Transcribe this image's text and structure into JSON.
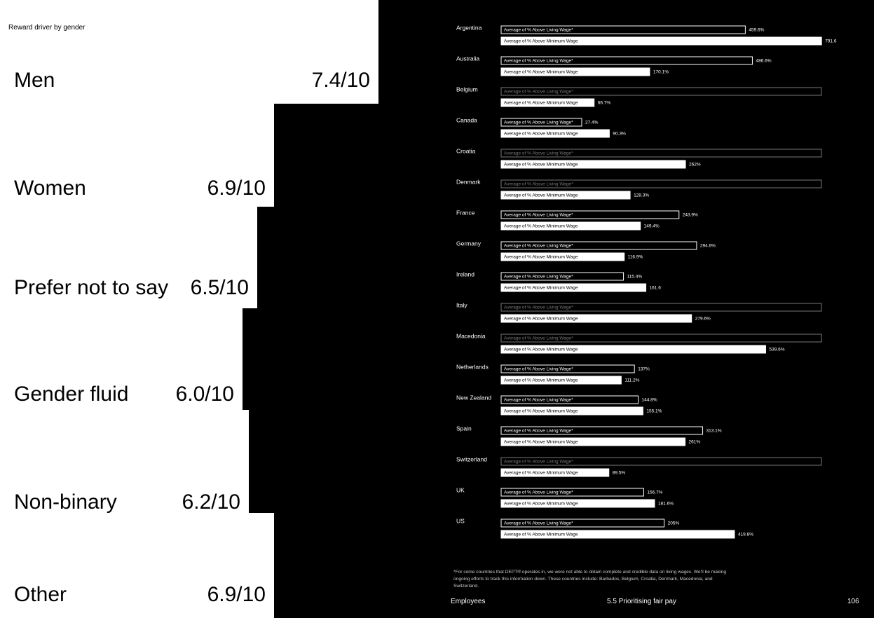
{
  "title": "Reward driver by gender",
  "gender_scores": [
    {
      "label": "Men",
      "score": "7.4/10"
    },
    {
      "label": "Women",
      "score": "6.9/10"
    },
    {
      "label": "Prefer not to say",
      "score": "6.5/10"
    },
    {
      "label": "Gender fluid",
      "score": "6.0/10"
    },
    {
      "label": "Non-binary",
      "score": "6.2/10"
    },
    {
      "label": "Other",
      "score": "6.9/10"
    }
  ],
  "chart_data": {
    "type": "bar",
    "orientation": "horizontal",
    "x_scale": "sqrt",
    "categories": [
      "Argentina",
      "Australia",
      "Belgium",
      "Canada",
      "Croatia",
      "Denmark",
      "France",
      "Germany",
      "Ireland",
      "Italy",
      "Macedonia",
      "Netherlands",
      "New Zealand",
      "Spain",
      "Switzerland",
      "UK",
      "US"
    ],
    "series": [
      {
        "name": "Average of % Above Living Wage*",
        "color": "#000000",
        "values": [
          459.6,
          486.6,
          null,
          27.4,
          null,
          null,
          243.9,
          294.6,
          115.4,
          null,
          null,
          137,
          144.8,
          313.1,
          null,
          156.7,
          205
        ],
        "value_labels": [
          "459.6%",
          "486.6%",
          null,
          "27.4%",
          null,
          null,
          "243.9%",
          "294.6%",
          "115.4%",
          null,
          null,
          "137%",
          "144.8%",
          "313.1%",
          null,
          "156.7%",
          "205%"
        ]
      },
      {
        "name": "Average of % Above Minimum Wage",
        "color": "#ffffff",
        "values": [
          791.6,
          170.1,
          66.7,
          90.3,
          262,
          128.3,
          149.4,
          116.9,
          161.6,
          279.6,
          539.6,
          111.2,
          155.1,
          261,
          89.5,
          181.6,
          419.8
        ],
        "value_labels": [
          "791.6",
          "170.1%",
          "66.7%",
          "90.3%",
          "262%",
          "128.3%",
          "149.4%",
          "116.9%",
          "161.6",
          "279.6%",
          "539.6%",
          "111.2%",
          "155.1%",
          "261%",
          "89.5%",
          "181.6%",
          "419.8%"
        ]
      }
    ],
    "footnote": "*For some countries that DEPT® operates in, we were not able to obtain complete and credible data on living wages. We'll be making ongoing efforts to track this information down. These countries include: Barbados, Belgium, Croatia, Denmark, Macedonia, and Switzerland."
  },
  "footer": {
    "section": "Employees",
    "chapter": "5.5 Prioritising fair pay",
    "page": "106"
  }
}
